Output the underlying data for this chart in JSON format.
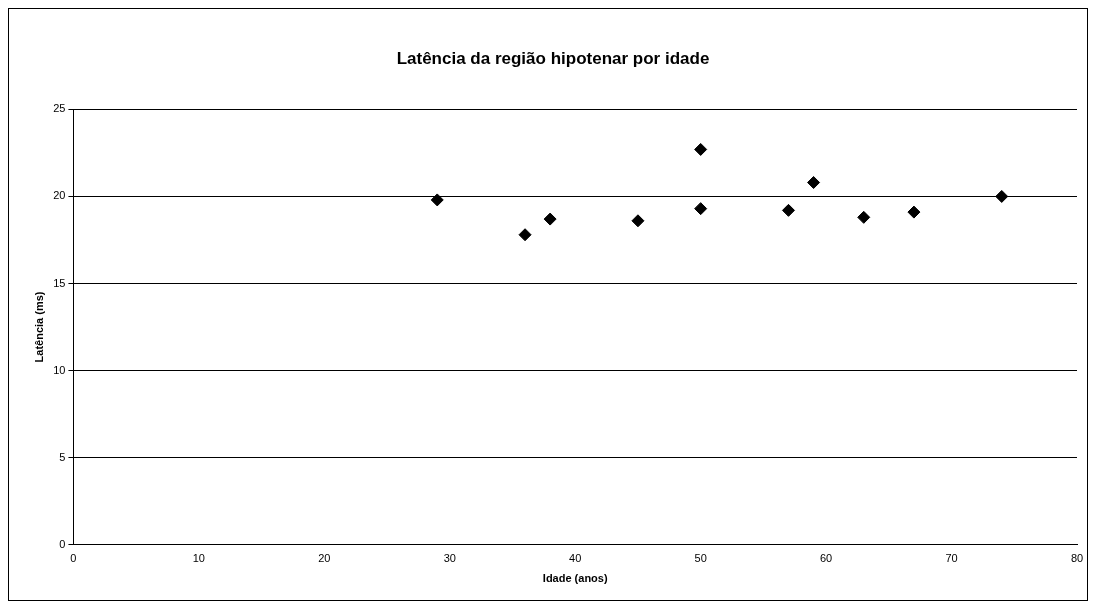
{
  "chart_data": {
    "type": "scatter",
    "title": "Latência da região hipotenar por idade",
    "xlabel": "Idade (anos)",
    "ylabel": "Latência (ms)",
    "x": [
      29,
      36,
      38,
      45,
      50,
      50,
      57,
      59,
      63,
      67,
      74
    ],
    "series": [
      {
        "color": "#000000",
        "values": [
          19.8,
          17.8,
          18.7,
          18.6,
          22.7,
          19.3,
          19.2,
          20.8,
          18.8,
          19.1,
          20.0
        ]
      }
    ],
    "xlim": [
      0,
      80
    ],
    "xticks": [
      0,
      10,
      20,
      30,
      40,
      50,
      60,
      70,
      80
    ],
    "ylim": [
      0,
      25
    ],
    "yticks": [
      0,
      5,
      10,
      15,
      20,
      25
    ],
    "grid": "y",
    "legend": false,
    "marker": "diamond"
  }
}
